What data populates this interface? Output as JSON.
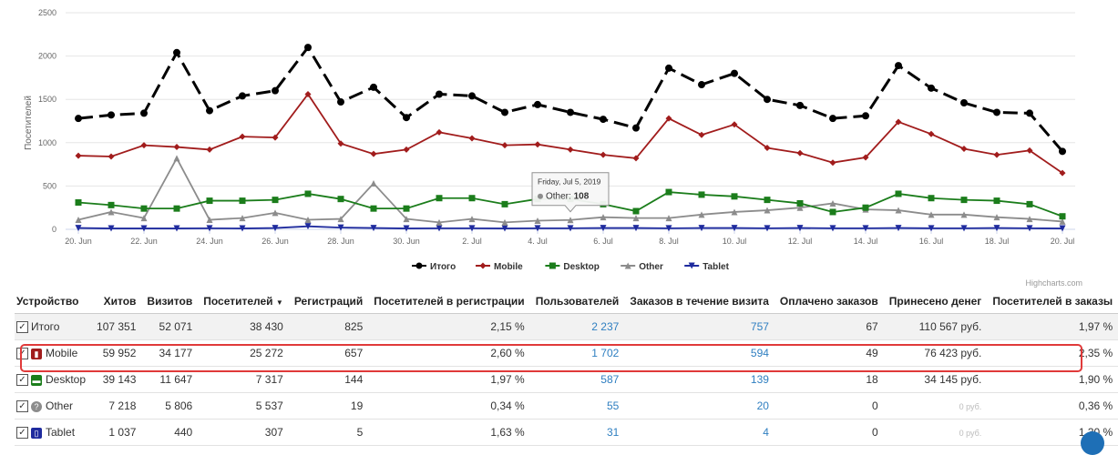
{
  "chart_data": {
    "type": "line",
    "ylabel": "Посетителей",
    "ylim": [
      0,
      2500
    ],
    "yticks": [
      0,
      500,
      1000,
      1500,
      2000,
      2500
    ],
    "x_tick_labels": [
      "20. Jun",
      "22. Jun",
      "24. Jun",
      "26. Jun",
      "28. Jun",
      "30. Jun",
      "2. Jul",
      "4. Jul",
      "6. Jul",
      "8. Jul",
      "10. Jul",
      "12. Jul",
      "14. Jul",
      "16. Jul",
      "18. Jul",
      "20. Jul"
    ],
    "x_dates": [
      "2019-06-20",
      "2019-06-21",
      "2019-06-22",
      "2019-06-23",
      "2019-06-24",
      "2019-06-25",
      "2019-06-26",
      "2019-06-27",
      "2019-06-28",
      "2019-06-29",
      "2019-06-30",
      "2019-07-01",
      "2019-07-02",
      "2019-07-03",
      "2019-07-04",
      "2019-07-05",
      "2019-07-06",
      "2019-07-07",
      "2019-07-08",
      "2019-07-09",
      "2019-07-10",
      "2019-07-11",
      "2019-07-12",
      "2019-07-13",
      "2019-07-14",
      "2019-07-15",
      "2019-07-16",
      "2019-07-17",
      "2019-07-18",
      "2019-07-19",
      "2019-07-20"
    ],
    "series": [
      {
        "name": "Итого",
        "color": "#000000",
        "dash": true,
        "marker": "circle",
        "values": [
          1280,
          1320,
          1340,
          2040,
          1370,
          1540,
          1600,
          2100,
          1470,
          1640,
          1290,
          1560,
          1540,
          1350,
          1440,
          1350,
          1270,
          1170,
          1860,
          1670,
          1800,
          1500,
          1430,
          1280,
          1310,
          1890,
          1630,
          1460,
          1350,
          1340,
          900
        ]
      },
      {
        "name": "Mobile",
        "color": "#a11c1c",
        "marker": "diamond",
        "values": [
          850,
          840,
          970,
          950,
          920,
          1070,
          1060,
          1560,
          990,
          870,
          920,
          1120,
          1050,
          970,
          980,
          920,
          860,
          820,
          1280,
          1090,
          1210,
          940,
          880,
          770,
          830,
          1240,
          1100,
          930,
          860,
          910,
          650
        ]
      },
      {
        "name": "Desktop",
        "color": "#1b7d1b",
        "marker": "square",
        "values": [
          310,
          280,
          240,
          240,
          330,
          330,
          340,
          410,
          350,
          240,
          240,
          360,
          360,
          290,
          350,
          350,
          290,
          210,
          430,
          400,
          380,
          340,
          300,
          200,
          250,
          410,
          360,
          340,
          330,
          290,
          150
        ]
      },
      {
        "name": "Other",
        "color": "#8c8c8c",
        "marker": "triangle",
        "values": [
          110,
          200,
          130,
          820,
          110,
          130,
          190,
          110,
          120,
          530,
          120,
          80,
          120,
          80,
          100,
          108,
          140,
          130,
          130,
          170,
          200,
          220,
          250,
          300,
          230,
          220,
          170,
          170,
          140,
          120,
          90
        ]
      },
      {
        "name": "Tablet",
        "color": "#1f2b9e",
        "marker": "triangle-down",
        "values": [
          15,
          10,
          10,
          10,
          12,
          10,
          15,
          35,
          20,
          15,
          10,
          12,
          12,
          10,
          12,
          12,
          15,
          15,
          12,
          15,
          15,
          12,
          15,
          12,
          12,
          15,
          12,
          12,
          15,
          12,
          10
        ]
      }
    ],
    "tooltip": {
      "date": "Friday, Jul 5, 2019",
      "series": "Other",
      "value": "108",
      "index": 15
    },
    "grid": true,
    "legend_position": "bottom-center"
  },
  "credits": "Highcharts.com",
  "table": {
    "headers": [
      "Устройство",
      "Хитов",
      "Визитов",
      "Посетителей",
      "Регистраций",
      "Посетителей в регистрации",
      "Пользователей",
      "Заказов в течение визита",
      "Оплачено заказов",
      "Принесено денег",
      "Посетителей в заказы"
    ],
    "sort_indicator": "▼",
    "rows": [
      {
        "name": "Итого",
        "hits": "107 351",
        "visits": "52 071",
        "visitors": "38 430",
        "regs": "825",
        "conv_reg": "2,15 %",
        "users": "2 237",
        "orders": "757",
        "paid": "67",
        "money": "110 567 руб.",
        "conv_order": "1,97 %"
      },
      {
        "name": "Mobile",
        "hits": "59 952",
        "visits": "34 177",
        "visitors": "25 272",
        "regs": "657",
        "conv_reg": "2,60 %",
        "users": "1 702",
        "orders": "594",
        "paid": "49",
        "money": "76 423 руб.",
        "conv_order": "2,35 %"
      },
      {
        "name": "Desktop",
        "hits": "39 143",
        "visits": "11 647",
        "visitors": "7 317",
        "regs": "144",
        "conv_reg": "1,97 %",
        "users": "587",
        "orders": "139",
        "paid": "18",
        "money": "34 145 руб.",
        "conv_order": "1,90 %"
      },
      {
        "name": "Other",
        "hits": "7 218",
        "visits": "5 806",
        "visitors": "5 537",
        "regs": "19",
        "conv_reg": "0,34 %",
        "users": "55",
        "orders": "20",
        "paid": "0",
        "money": "0 руб.",
        "conv_order": "0,36 %"
      },
      {
        "name": "Tablet",
        "hits": "1 037",
        "visits": "440",
        "visitors": "307",
        "regs": "5",
        "conv_reg": "1,63 %",
        "users": "31",
        "orders": "4",
        "paid": "0",
        "money": "0 руб.",
        "conv_order": "1,30 %"
      }
    ]
  }
}
